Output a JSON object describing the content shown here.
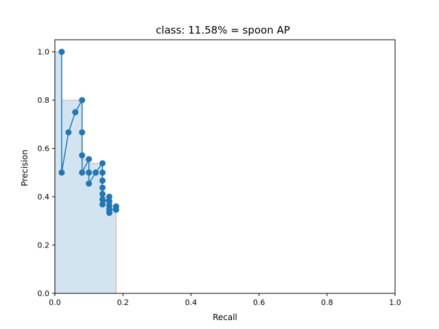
{
  "chart_data": {
    "type": "line",
    "title": "class: 11.58% = spoon AP",
    "xlabel": "Recall",
    "ylabel": "Precision",
    "xlim": [
      0.0,
      1.0
    ],
    "ylim": [
      0.0,
      1.05
    ],
    "xticks": [
      "0.0",
      "0.2",
      "0.4",
      "0.6",
      "0.8",
      "1.0"
    ],
    "yticks": [
      "0.0",
      "0.2",
      "0.4",
      "0.6",
      "0.8",
      "1.0"
    ],
    "grid": false,
    "colors": {
      "line": "#1f77b4",
      "fill": "#1f77b4",
      "envelope": "#e8a39a"
    },
    "series": [
      {
        "points": [
          [
            0.02,
            1.0
          ],
          [
            0.02,
            0.5
          ],
          [
            0.04,
            0.6667
          ],
          [
            0.06,
            0.75
          ],
          [
            0.08,
            0.8
          ],
          [
            0.08,
            0.6667
          ],
          [
            0.08,
            0.5714
          ],
          [
            0.08,
            0.5
          ],
          [
            0.1,
            0.5556
          ],
          [
            0.1,
            0.5
          ],
          [
            0.1,
            0.4545
          ],
          [
            0.12,
            0.5
          ],
          [
            0.14,
            0.5385
          ],
          [
            0.14,
            0.5
          ],
          [
            0.14,
            0.4667
          ],
          [
            0.14,
            0.4375
          ],
          [
            0.14,
            0.4118
          ],
          [
            0.14,
            0.3889
          ],
          [
            0.14,
            0.3684
          ],
          [
            0.16,
            0.4
          ],
          [
            0.16,
            0.381
          ],
          [
            0.16,
            0.3636
          ],
          [
            0.16,
            0.3478
          ],
          [
            0.16,
            0.3333
          ],
          [
            0.18,
            0.36
          ],
          [
            0.18,
            0.3462
          ]
        ]
      }
    ],
    "envelope": [
      [
        0.0,
        1.0
      ],
      [
        0.02,
        1.0
      ],
      [
        0.02,
        0.8
      ],
      [
        0.08,
        0.8
      ],
      [
        0.08,
        0.5556
      ],
      [
        0.1,
        0.5556
      ],
      [
        0.1,
        0.5385
      ],
      [
        0.14,
        0.5385
      ],
      [
        0.14,
        0.4
      ],
      [
        0.16,
        0.4
      ],
      [
        0.16,
        0.36
      ],
      [
        0.18,
        0.36
      ],
      [
        0.18,
        0.0
      ]
    ]
  }
}
